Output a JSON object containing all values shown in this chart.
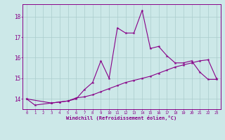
{
  "x_values": [
    0,
    1,
    2,
    3,
    4,
    5,
    6,
    7,
    8,
    9,
    10,
    11,
    12,
    13,
    14,
    15,
    16,
    17,
    18,
    19,
    20,
    21,
    22,
    23
  ],
  "line1_y": [
    14.0,
    13.7,
    null,
    13.8,
    13.85,
    13.9,
    14.0,
    14.45,
    14.8,
    15.85,
    15.0,
    17.45,
    17.2,
    17.2,
    18.3,
    16.45,
    16.55,
    16.1,
    15.75,
    15.75,
    15.85,
    15.3,
    14.95,
    14.95
  ],
  "line2_y": [
    14.0,
    null,
    null,
    13.8,
    13.85,
    13.9,
    14.05,
    14.1,
    14.2,
    14.35,
    14.5,
    14.65,
    14.8,
    14.9,
    15.0,
    15.1,
    15.25,
    15.4,
    15.55,
    15.65,
    15.75,
    15.85,
    15.9,
    15.0
  ],
  "line_color": "#880088",
  "bg_color": "#cce8e8",
  "grid_color": "#aacccc",
  "ylabel_values": [
    14,
    15,
    16,
    17,
    18
  ],
  "xlabel_values": [
    0,
    1,
    2,
    3,
    4,
    5,
    6,
    7,
    8,
    9,
    10,
    11,
    12,
    13,
    14,
    15,
    16,
    17,
    18,
    19,
    20,
    21,
    22,
    23
  ],
  "xlabel": "Windchill (Refroidissement éolien,°C)",
  "ylim": [
    13.5,
    18.6
  ],
  "xlim": [
    -0.5,
    23.5
  ]
}
